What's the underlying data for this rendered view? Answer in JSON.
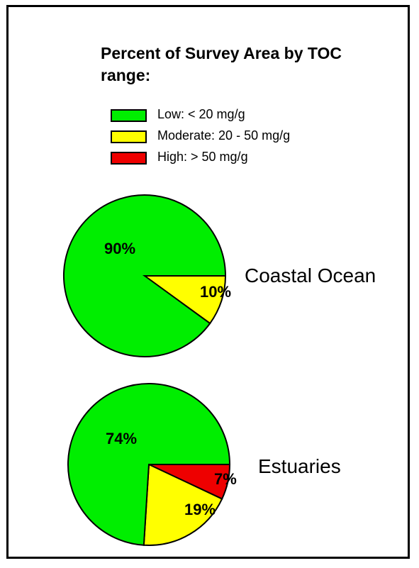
{
  "chart_data": {
    "type": "pie",
    "title": "Percent of Survey Area by TOC range:",
    "legend": [
      {
        "label": "Low: < 20 mg/g",
        "color": "#00ee00"
      },
      {
        "label": "Moderate: 20 - 50 mg/g",
        "color": "#ffff00"
      },
      {
        "label": "High: > 50 mg/g",
        "color": "#ee0000"
      }
    ],
    "pies": [
      {
        "name": "Coastal Ocean",
        "slices": [
          {
            "category": "Low: < 20 mg/g",
            "value": 90,
            "label": "90%",
            "color": "#00ee00"
          },
          {
            "category": "Moderate: 20 - 50 mg/g",
            "value": 10,
            "label": "10%",
            "color": "#ffff00"
          }
        ]
      },
      {
        "name": "Estuaries",
        "slices": [
          {
            "category": "Low: < 20 mg/g",
            "value": 74,
            "label": "74%",
            "color": "#00ee00"
          },
          {
            "category": "Moderate: 20 - 50 mg/g",
            "value": 19,
            "label": "19%",
            "color": "#ffff00"
          },
          {
            "category": "High: > 50 mg/g",
            "value": 7,
            "label": "7%",
            "color": "#ee0000"
          }
        ]
      }
    ]
  }
}
